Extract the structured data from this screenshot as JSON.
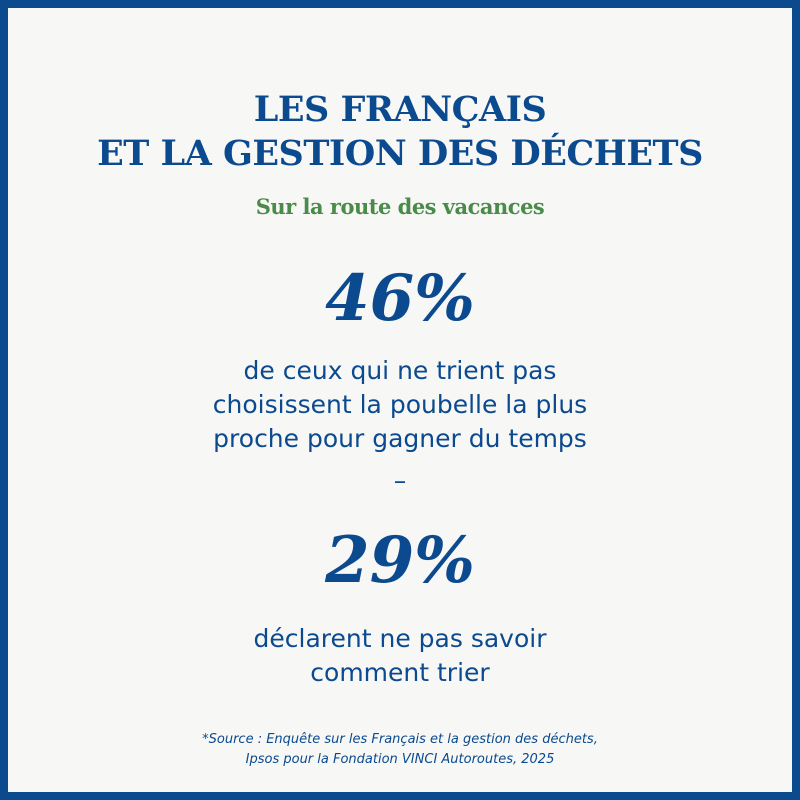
{
  "title": {
    "line1": "LES FRANÇAIS",
    "line2": "ET LA GESTION DES DÉCHETS"
  },
  "subtitle": "Sur la route des vacances",
  "stats": [
    {
      "value": "46%",
      "description_lines": [
        "de ceux qui ne trient pas",
        "choisissent la poubelle la plus",
        "proche pour gagner du temps"
      ]
    },
    {
      "value": "29%",
      "description_lines": [
        "déclarent ne pas savoir",
        "comment trier"
      ]
    }
  ],
  "separator": "–",
  "source": {
    "line1": "*Source : Enquête sur les Français et la gestion des déchets,",
    "line2": "Ipsos pour la Fondation VINCI Autoroutes, 2025"
  },
  "colors": {
    "primary_blue": "#0b4a8f",
    "subtitle_green": "#4a8b4a",
    "background": "#f7f7f5"
  }
}
